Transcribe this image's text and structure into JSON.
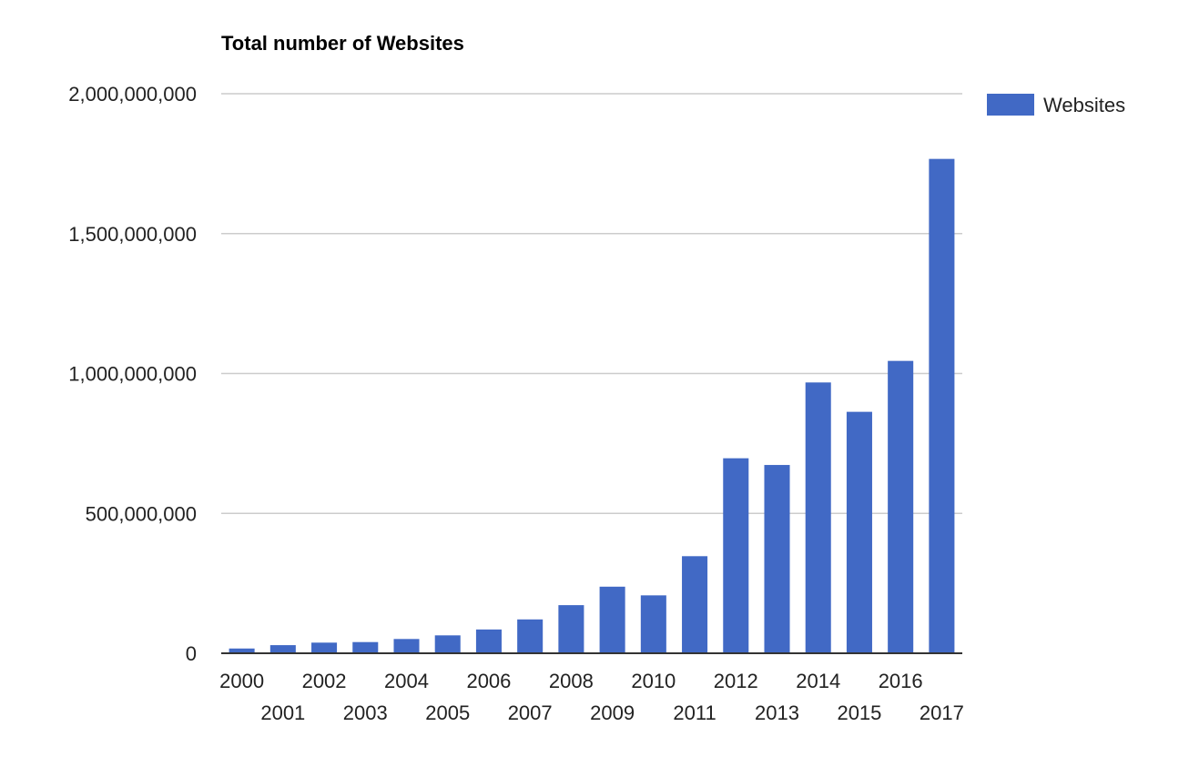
{
  "chart_data": {
    "type": "bar",
    "title": "Total number of Websites",
    "xlabel": "",
    "ylabel": "",
    "categories": [
      "2000",
      "2001",
      "2002",
      "2003",
      "2004",
      "2005",
      "2006",
      "2007",
      "2008",
      "2009",
      "2010",
      "2011",
      "2012",
      "2013",
      "2014",
      "2015",
      "2016",
      "2017"
    ],
    "series": [
      {
        "name": "Websites",
        "color": "#4169c5",
        "values": [
          17000000,
          29000000,
          38000000,
          40000000,
          51000000,
          64000000,
          85000000,
          121000000,
          172000000,
          238000000,
          207000000,
          347000000,
          697000000,
          673000000,
          968000000,
          863000000,
          1045000000,
          1767000000
        ]
      }
    ],
    "ylim": [
      0,
      2000000000
    ],
    "yticks": [
      0,
      500000000,
      1000000000,
      1500000000,
      2000000000
    ],
    "ytick_labels": [
      "0",
      "500,000,000",
      "1,000,000,000",
      "1,500,000,000",
      "2,000,000,000"
    ],
    "grid": true,
    "legend_position": "right"
  }
}
